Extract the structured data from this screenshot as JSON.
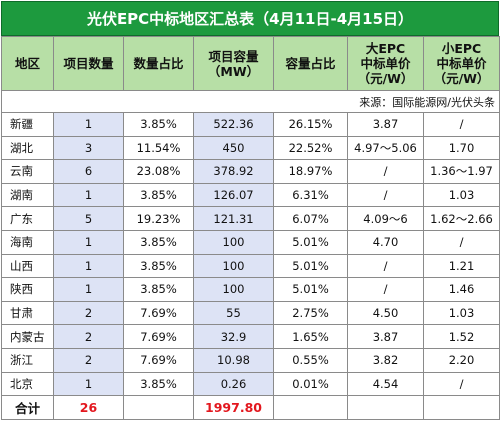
{
  "title": "光伏EPC中标地区汇总表（4月11日-4月15日）",
  "headers": [
    [
      "地区"
    ],
    [
      "项目数量"
    ],
    [
      "数量占比"
    ],
    [
      "项目容量",
      "（MW）"
    ],
    [
      "容量占比"
    ],
    [
      "大EPC",
      "中标单价",
      "（元/W）"
    ],
    [
      "小EPC",
      "中标单价",
      "（元/W）"
    ]
  ],
  "source": "来源：国际能源网/光伏头条",
  "rows": [
    [
      "新疆",
      "1",
      "3.85%",
      "522.36",
      "26.15%",
      "3.87",
      "/"
    ],
    [
      "湖北",
      "3",
      "11.54%",
      "450",
      "22.52%",
      "4.97～5.06",
      "1.70"
    ],
    [
      "云南",
      "6",
      "23.08%",
      "378.92",
      "18.97%",
      "/",
      "1.36～1.97"
    ],
    [
      "湖南",
      "1",
      "3.85%",
      "126.07",
      "6.31%",
      "/",
      "1.03"
    ],
    [
      "广东",
      "5",
      "19.23%",
      "121.31",
      "6.07%",
      "4.09～6",
      "1.62～2.66"
    ],
    [
      "海南",
      "1",
      "3.85%",
      "100",
      "5.01%",
      "4.70",
      "/"
    ],
    [
      "山西",
      "1",
      "3.85%",
      "100",
      "5.01%",
      "/",
      "1.21"
    ],
    [
      "陕西",
      "1",
      "3.85%",
      "100",
      "5.01%",
      "/",
      "1.46"
    ],
    [
      "甘肃",
      "2",
      "7.69%",
      "55",
      "2.75%",
      "4.50",
      "1.03"
    ],
    [
      "内蒙古",
      "2",
      "7.69%",
      "32.9",
      "1.65%",
      "3.87",
      "1.52"
    ],
    [
      "浙江",
      "2",
      "7.69%",
      "10.98",
      "0.55%",
      "3.82",
      "2.20"
    ],
    [
      "北京",
      "1",
      "3.85%",
      "0.26",
      "0.01%",
      "4.54",
      "/"
    ]
  ],
  "total": [
    "合计",
    "26",
    "",
    "1997.80",
    "",
    "",
    ""
  ],
  "colors": {
    "title_bg": "#1d9a3e",
    "header_bg": "#b7dfa6",
    "highlight_bg": "#dde3f5",
    "total_red": "#e3171e"
  }
}
